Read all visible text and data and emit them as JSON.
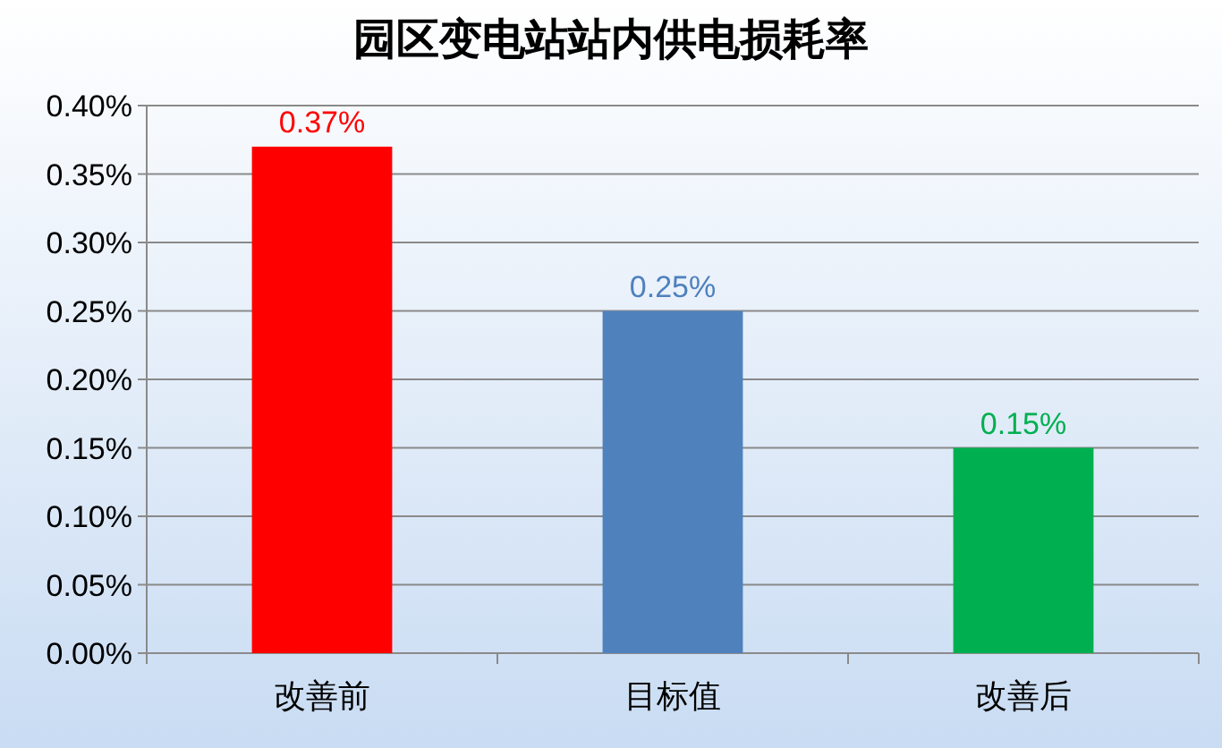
{
  "chart_data": {
    "type": "bar",
    "title": "园区变电站站内供电损耗率",
    "categories": [
      "改善前",
      "目标值",
      "改善后"
    ],
    "values": [
      0.37,
      0.25,
      0.15
    ],
    "colors": [
      "#ff0000",
      "#4f81bd",
      "#00b050"
    ],
    "value_labels": [
      "0.37%",
      "0.25%",
      "0.15%"
    ],
    "ylim": [
      0,
      0.4
    ],
    "yticks": [
      {
        "value": 0,
        "label": "0.00%"
      },
      {
        "value": 0.05,
        "label": "0.05%"
      },
      {
        "value": 0.1,
        "label": "0.10%"
      },
      {
        "value": 0.15,
        "label": "0.15%"
      },
      {
        "value": 0.2,
        "label": "0.20%"
      },
      {
        "value": 0.25,
        "label": "0.25%"
      },
      {
        "value": 0.3,
        "label": "0.30%"
      },
      {
        "value": 0.35,
        "label": "0.35%"
      },
      {
        "value": 0.4,
        "label": "0.40%"
      }
    ],
    "grid": "y"
  }
}
